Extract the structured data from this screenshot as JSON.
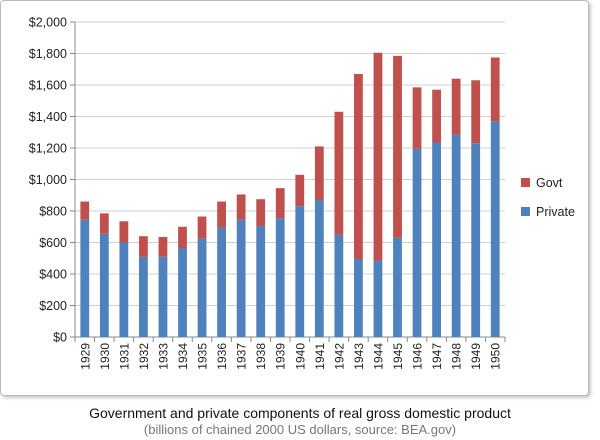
{
  "chart_data": {
    "type": "bar",
    "stacked": true,
    "categories": [
      "1929",
      "1930",
      "1931",
      "1932",
      "1933",
      "1934",
      "1935",
      "1936",
      "1937",
      "1938",
      "1939",
      "1940",
      "1941",
      "1942",
      "1943",
      "1944",
      "1945",
      "1946",
      "1947",
      "1948",
      "1949",
      "1950"
    ],
    "series": [
      {
        "name": "Private",
        "color": "#4f81bd",
        "values": [
          745,
          655,
          600,
          510,
          510,
          565,
          625,
          695,
          745,
          705,
          755,
          830,
          870,
          650,
          495,
          485,
          630,
          1195,
          1235,
          1285,
          1230,
          1370
        ]
      },
      {
        "name": "Govt",
        "color": "#c0504d",
        "values": [
          115,
          130,
          135,
          130,
          125,
          135,
          140,
          165,
          160,
          170,
          190,
          200,
          340,
          780,
          1175,
          1320,
          1155,
          390,
          335,
          355,
          400,
          405
        ]
      }
    ],
    "ylim": [
      0,
      2000
    ],
    "yticks": [
      "$0",
      "$200",
      "$400",
      "$600",
      "$800",
      "$1,000",
      "$1,200",
      "$1,400",
      "$1,600",
      "$1,800",
      "$2,000"
    ],
    "grid": true,
    "legend": [
      "Govt",
      "Private"
    ],
    "legend_position": "right"
  },
  "caption": {
    "title": "Government and private components of real gross domestic product",
    "subtitle": "(billions of chained 2000 US dollars, source: BEA.gov)"
  }
}
